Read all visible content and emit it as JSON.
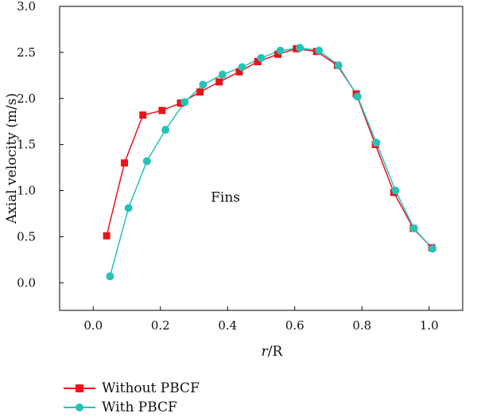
{
  "chart_data": {
    "type": "line",
    "xlabel_italic": "r",
    "xlabel_rest": "/R",
    "ylabel": "Axial velocity (m/s)",
    "xlim": [
      -0.1,
      1.1
    ],
    "ylim": [
      -0.3,
      3.0
    ],
    "xticks": [
      "0.0",
      "0.2",
      "0.4",
      "0.6",
      "0.8",
      "1.0"
    ],
    "xtick_values": [
      0.0,
      0.2,
      0.4,
      0.6,
      0.8,
      1.0
    ],
    "yticks": [
      "0.0",
      "0.5",
      "1.0",
      "1.5",
      "2.0",
      "2.5",
      "3.0"
    ],
    "ytick_values": [
      0.0,
      0.5,
      1.0,
      1.5,
      2.0,
      2.5,
      3.0
    ],
    "annotation": {
      "text": "Fins",
      "x": 0.35,
      "y": 0.93
    },
    "series": [
      {
        "name": "Without PBCF",
        "color": "#e8141b",
        "marker": "square",
        "x": [
          0.04,
          0.093,
          0.148,
          0.205,
          0.26,
          0.318,
          0.375,
          0.435,
          0.49,
          0.55,
          0.605,
          0.665,
          0.727,
          0.783,
          0.84,
          0.895,
          0.953,
          1.008
        ],
        "y": [
          0.51,
          1.3,
          1.82,
          1.87,
          1.95,
          2.07,
          2.18,
          2.29,
          2.4,
          2.48,
          2.54,
          2.51,
          2.36,
          2.05,
          1.5,
          0.98,
          0.59,
          0.38
        ]
      },
      {
        "name": "With PBCF",
        "color": "#26c2b8",
        "marker": "circle",
        "x": [
          0.05,
          0.105,
          0.16,
          0.215,
          0.272,
          0.327,
          0.385,
          0.443,
          0.5,
          0.557,
          0.615,
          0.672,
          0.73,
          0.787,
          0.843,
          0.9,
          0.955,
          1.01
        ],
        "y": [
          0.07,
          0.81,
          1.32,
          1.66,
          1.96,
          2.15,
          2.26,
          2.34,
          2.44,
          2.52,
          2.55,
          2.52,
          2.36,
          2.02,
          1.52,
          1.0,
          0.59,
          0.37
        ]
      }
    ]
  }
}
